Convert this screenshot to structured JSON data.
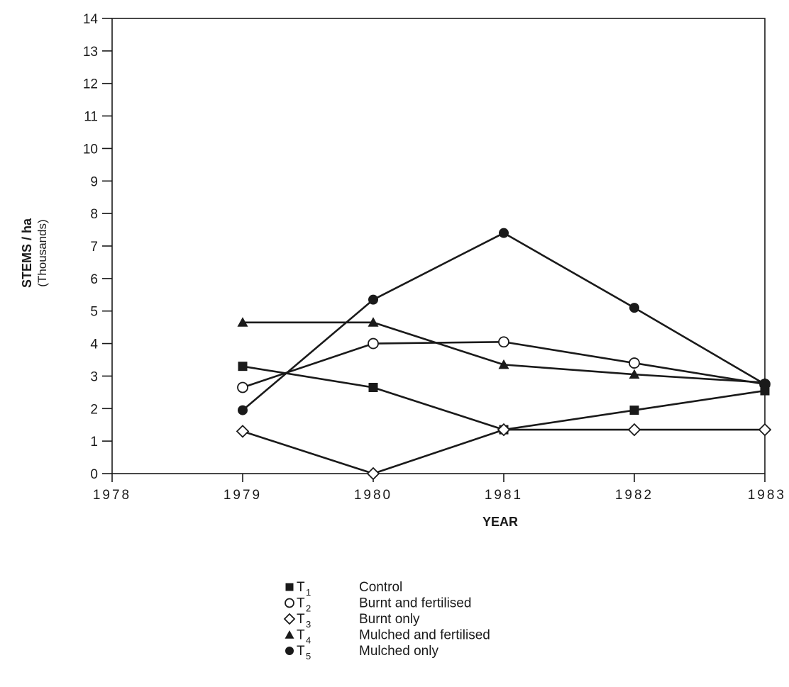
{
  "chart_data": {
    "type": "line",
    "xlabel": "YEAR",
    "ylabel": "STEMS / ha",
    "ylabel_unit": "(Thousands)",
    "xlim": [
      1978,
      1983
    ],
    "ylim": [
      0,
      14
    ],
    "x_ticks": [
      "1978",
      "1979",
      "1980",
      "1981",
      "1982",
      "1983"
    ],
    "y_ticks": [
      "0",
      "1",
      "2",
      "3",
      "4",
      "5",
      "6",
      "7",
      "8",
      "9",
      "10",
      "11",
      "12",
      "13",
      "14"
    ],
    "grid": false,
    "legend_position": "bottom-center",
    "series": [
      {
        "name": "Control",
        "code": "T",
        "sub": "1",
        "marker": "filled-square",
        "x": [
          1979,
          1980,
          1981,
          1982,
          1983
        ],
        "values": [
          3.3,
          2.65,
          1.35,
          1.95,
          2.55
        ]
      },
      {
        "name": "Burnt and fertilised",
        "code": "T",
        "sub": "2",
        "marker": "open-circle",
        "x": [
          1979,
          1980,
          1981,
          1982,
          1983
        ],
        "values": [
          2.65,
          4.0,
          4.05,
          3.4,
          2.75
        ]
      },
      {
        "name": "Burnt only",
        "code": "T",
        "sub": "3",
        "marker": "open-diamond",
        "x": [
          1979,
          1980,
          1981,
          1982,
          1983
        ],
        "values": [
          1.3,
          0.0,
          1.35,
          1.35,
          1.35
        ]
      },
      {
        "name": "Mulched and fertilised",
        "code": "T",
        "sub": "4",
        "marker": "filled-triangle",
        "x": [
          1979,
          1980,
          1981,
          1982,
          1983
        ],
        "values": [
          4.65,
          4.65,
          3.35,
          3.05,
          2.8
        ]
      },
      {
        "name": "Mulched only",
        "code": "T",
        "sub": "5",
        "marker": "filled-circle",
        "x": [
          1979,
          1980,
          1981,
          1982,
          1983
        ],
        "values": [
          1.95,
          5.35,
          7.4,
          5.1,
          2.75
        ]
      }
    ]
  },
  "colors": {
    "ink": "#1a1a1a",
    "background": "#ffffff"
  }
}
